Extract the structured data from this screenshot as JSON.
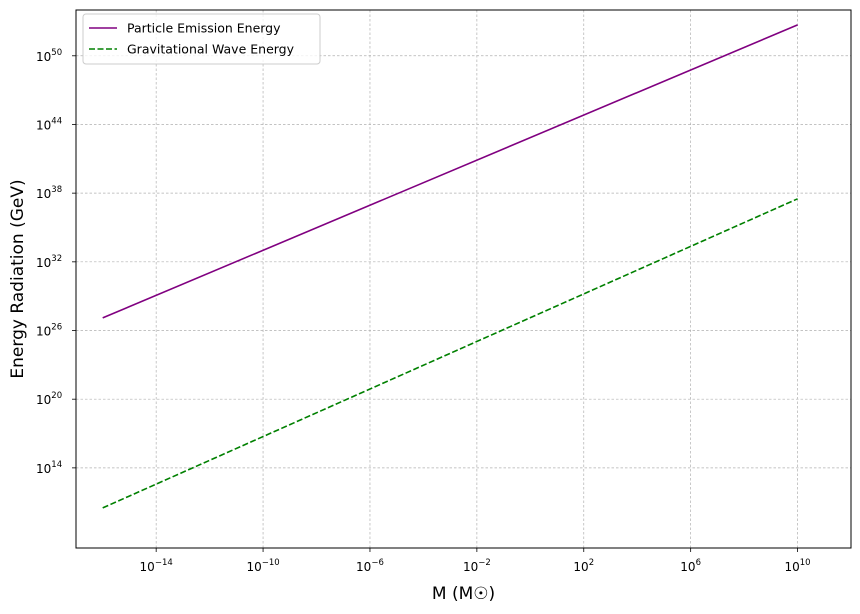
{
  "chart_data": {
    "type": "line",
    "xscale": "log",
    "yscale": "log",
    "xlabel": "M (M☉)",
    "ylabel": "Energy Radiation (GeV)",
    "xlim": [
      1e-17,
      1000000000000.0
    ],
    "ylim": [
      10000000.0,
      1e+54
    ],
    "xticks": [
      {
        "exp": -14,
        "base": "10",
        "sup": "−14"
      },
      {
        "exp": -10,
        "base": "10",
        "sup": "−10"
      },
      {
        "exp": -6,
        "base": "10",
        "sup": "−6"
      },
      {
        "exp": -2,
        "base": "10",
        "sup": "−2"
      },
      {
        "exp": 2,
        "base": "10",
        "sup": "2"
      },
      {
        "exp": 6,
        "base": "10",
        "sup": "6"
      },
      {
        "exp": 10,
        "base": "10",
        "sup": "10"
      }
    ],
    "yticks": [
      {
        "exp": 14,
        "base": "10",
        "sup": "14"
      },
      {
        "exp": 20,
        "base": "10",
        "sup": "20"
      },
      {
        "exp": 26,
        "base": "10",
        "sup": "26"
      },
      {
        "exp": 32,
        "base": "10",
        "sup": "32"
      },
      {
        "exp": 38,
        "base": "10",
        "sup": "38"
      },
      {
        "exp": 44,
        "base": "10",
        "sup": "44"
      },
      {
        "exp": 50,
        "base": "10",
        "sup": "50"
      }
    ],
    "grid": true,
    "legend_position": "top-left",
    "series": [
      {
        "name": "Particle Emission Energy",
        "color": "#800080",
        "style": "solid",
        "x": [
          1e-16,
          10000000000.0
        ],
        "y": [
          1.26e+27,
          5e+52
        ]
      },
      {
        "name": "Gravitational Wave Energy",
        "color": "#008000",
        "style": "dashed",
        "x": [
          1e-16,
          10000000000.0
        ],
        "y": [
          32000000000.0,
          3.2e+37
        ]
      }
    ]
  }
}
